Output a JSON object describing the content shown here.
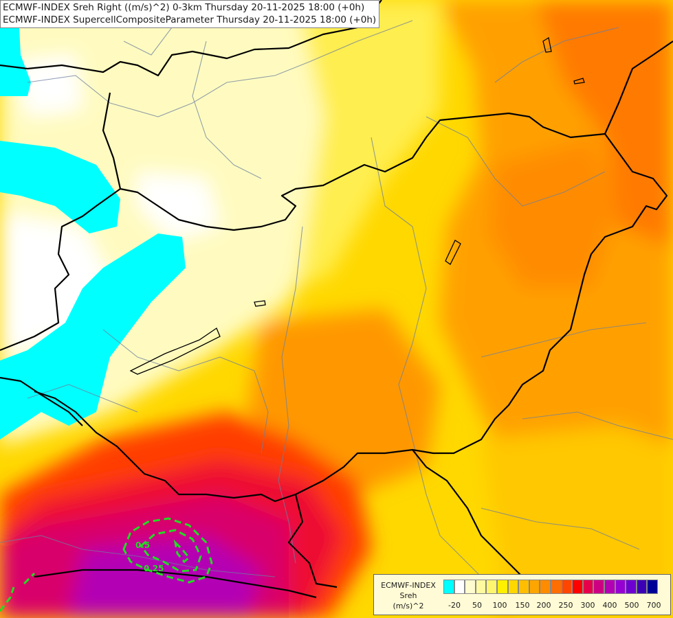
{
  "titles": [
    "ECMWF-INDEX Sreh Right ((m/s)^2) 0-3km Thursday 20-11-2025 18:00 (+0h)",
    "ECMWF-INDEX SupercellCompositeParameter Thursday 20-11-2025 18:00 (+0h)"
  ],
  "legend": {
    "name_lines": [
      "ECMWF-INDEX",
      "Sreh",
      "(m/s)^2"
    ],
    "colors": [
      "#00ffff",
      "#ffffff",
      "#fffccf",
      "#fffa9f",
      "#fff56e",
      "#fff000",
      "#ffd700",
      "#ffbe00",
      "#ffa500",
      "#ff8c00",
      "#ff6e00",
      "#ff4600",
      "#ff0000",
      "#e6004b",
      "#cd0082",
      "#b400b4",
      "#9600d2",
      "#6e00d2",
      "#3c00b4",
      "#000096"
    ],
    "ticks": [
      "-20",
      "50",
      "100",
      "150",
      "200",
      "250",
      "300",
      "400",
      "500",
      "700"
    ]
  },
  "contours": {
    "color": "#22dd22",
    "labels": [
      "0.5",
      "0.25"
    ]
  }
}
